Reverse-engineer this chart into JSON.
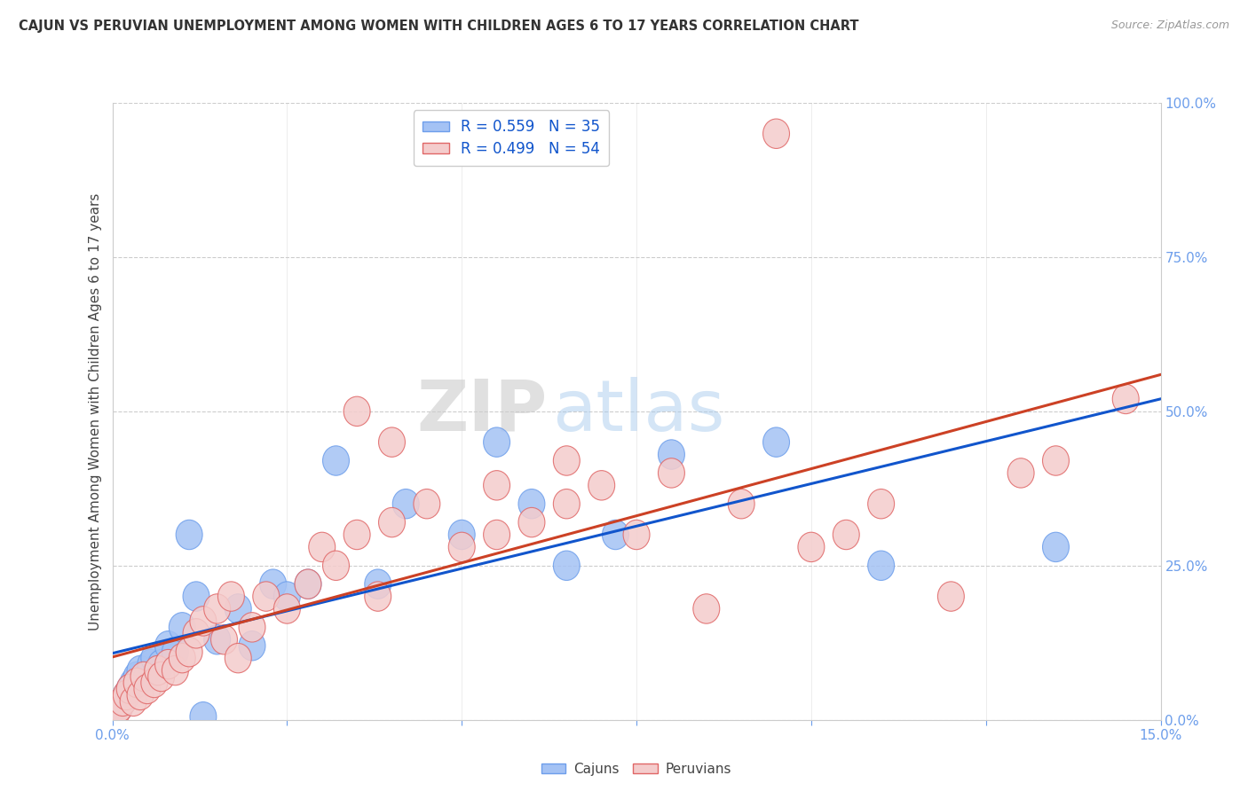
{
  "title": "CAJUN VS PERUVIAN UNEMPLOYMENT AMONG WOMEN WITH CHILDREN AGES 6 TO 17 YEARS CORRELATION CHART",
  "source": "Source: ZipAtlas.com",
  "ylabel": "Unemployment Among Women with Children Ages 6 to 17 years",
  "x_min": 0.0,
  "x_max": 15.0,
  "y_min": 0.0,
  "y_max": 100.0,
  "y_ticks": [
    0.0,
    25.0,
    50.0,
    75.0,
    100.0
  ],
  "y_tick_labels": [
    "0.0%",
    "25.0%",
    "50.0%",
    "75.0%",
    "100.0%"
  ],
  "cajun_color": "#a4c2f4",
  "cajun_edge_color": "#6d9eeb",
  "peruvian_color": "#f4cccc",
  "peruvian_edge_color": "#e06666",
  "cajun_line_color": "#1155cc",
  "peruvian_line_color": "#cc4125",
  "legend_label_cajun": "R = 0.559   N = 35",
  "legend_label_peruvian": "R = 0.499   N = 54",
  "legend_text_color": "#1155cc",
  "watermark_zip": "ZIP",
  "watermark_atlas": "atlas",
  "background_color": "#ffffff",
  "grid_color": "#cccccc",
  "axis_color": "#cccccc",
  "tick_color": "#6d9eeb",
  "cajun_x": [
    0.1,
    0.15,
    0.2,
    0.25,
    0.3,
    0.35,
    0.4,
    0.5,
    0.55,
    0.6,
    0.7,
    0.8,
    0.9,
    1.0,
    1.1,
    1.2,
    1.5,
    1.8,
    2.0,
    2.3,
    2.5,
    2.8,
    3.2,
    3.8,
    4.2,
    5.0,
    5.5,
    6.0,
    6.5,
    7.2,
    8.0,
    9.5,
    11.0,
    13.5,
    1.3
  ],
  "cajun_y": [
    2.0,
    3.0,
    4.0,
    5.0,
    6.0,
    7.0,
    8.0,
    7.0,
    9.0,
    10.0,
    9.0,
    12.0,
    11.0,
    15.0,
    30.0,
    20.0,
    13.0,
    18.0,
    12.0,
    22.0,
    20.0,
    22.0,
    42.0,
    22.0,
    35.0,
    30.0,
    45.0,
    35.0,
    25.0,
    30.0,
    43.0,
    45.0,
    25.0,
    28.0,
    0.5
  ],
  "peruvian_x": [
    0.05,
    0.1,
    0.15,
    0.2,
    0.25,
    0.3,
    0.35,
    0.4,
    0.45,
    0.5,
    0.6,
    0.65,
    0.7,
    0.8,
    0.9,
    1.0,
    1.1,
    1.2,
    1.3,
    1.5,
    1.6,
    1.7,
    1.8,
    2.0,
    2.2,
    2.5,
    2.8,
    3.0,
    3.2,
    3.5,
    3.8,
    4.0,
    4.5,
    5.0,
    5.5,
    6.0,
    6.5,
    7.0,
    7.5,
    8.0,
    8.5,
    9.0,
    9.5,
    10.0,
    11.0,
    12.0,
    13.0,
    13.5,
    14.5,
    5.5,
    4.0,
    6.5,
    10.5,
    3.5
  ],
  "peruvian_y": [
    1.0,
    2.0,
    3.0,
    4.0,
    5.0,
    3.0,
    6.0,
    4.0,
    7.0,
    5.0,
    6.0,
    8.0,
    7.0,
    9.0,
    8.0,
    10.0,
    11.0,
    14.0,
    16.0,
    18.0,
    13.0,
    20.0,
    10.0,
    15.0,
    20.0,
    18.0,
    22.0,
    28.0,
    25.0,
    30.0,
    20.0,
    32.0,
    35.0,
    28.0,
    30.0,
    32.0,
    35.0,
    38.0,
    30.0,
    40.0,
    18.0,
    35.0,
    95.0,
    28.0,
    35.0,
    20.0,
    40.0,
    42.0,
    52.0,
    38.0,
    45.0,
    42.0,
    30.0,
    50.0
  ]
}
